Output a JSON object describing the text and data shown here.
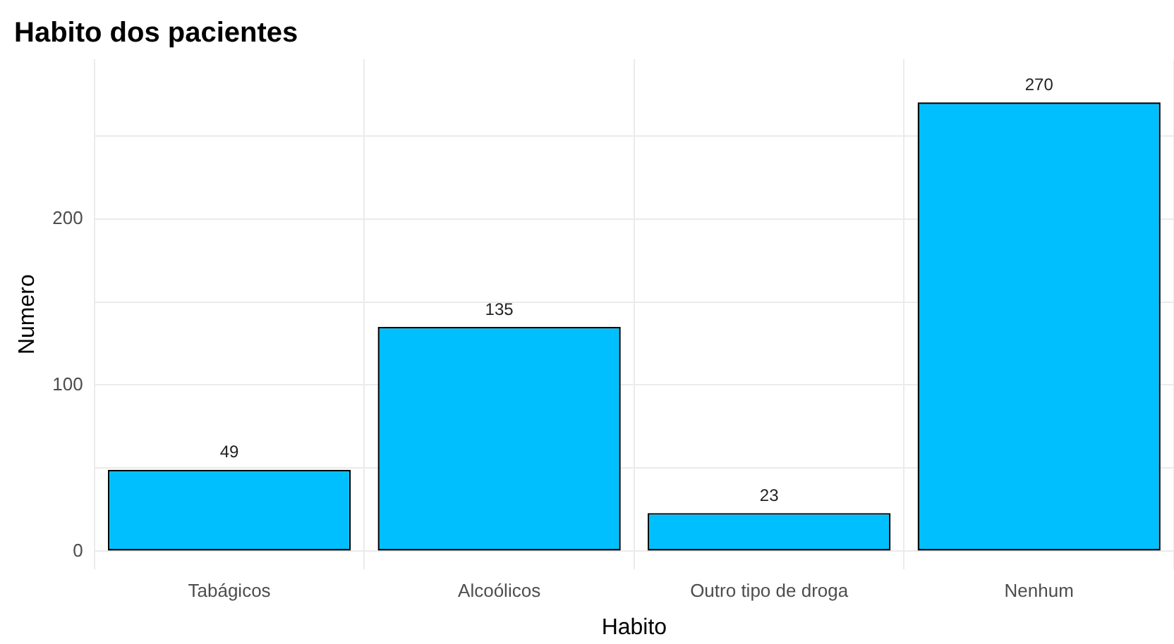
{
  "chart_data": {
    "type": "bar",
    "title": "Habito dos pacientes",
    "xlabel": "Habito",
    "ylabel": "Numero",
    "categories": [
      "Tabágicos",
      "Alcoólicos",
      "Outro tipo de droga",
      "Nenhum"
    ],
    "values": [
      49,
      135,
      23,
      270
    ],
    "color": "#00bfff",
    "ylim": [
      -11,
      296
    ],
    "yticks": [
      0,
      {
        "value": 50,
        "label": null
      },
      100,
      {
        "value": 150,
        "label": null
      },
      200,
      {
        "value": 250,
        "label": null
      }
    ],
    "grid": true,
    "data_labels": true,
    "legend": false
  }
}
